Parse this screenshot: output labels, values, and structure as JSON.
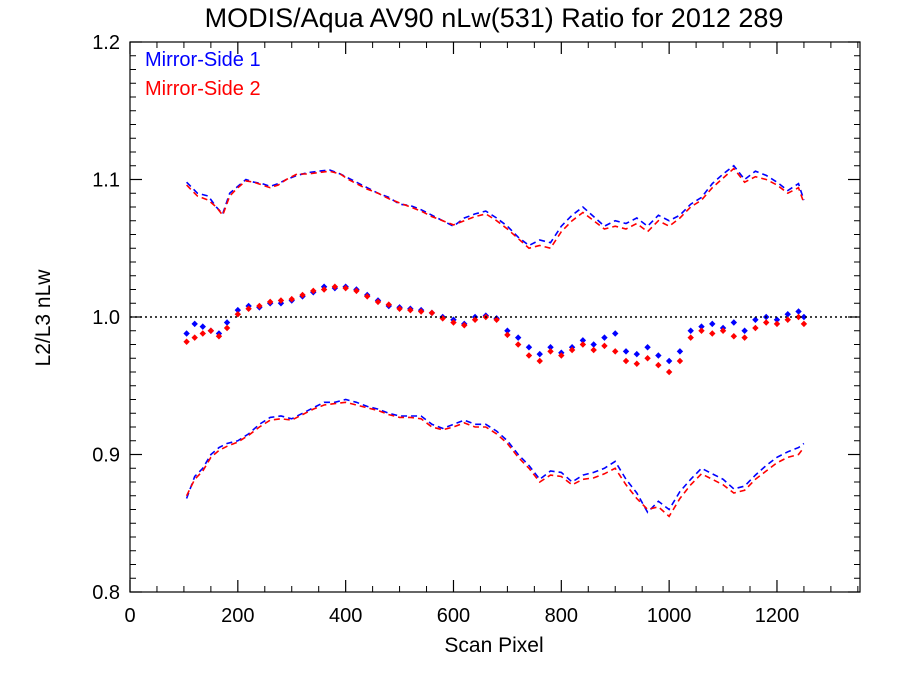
{
  "chart_data": {
    "type": "scatter",
    "title": "MODIS/Aqua AV90 nLw(531) Ratio for 2012 289",
    "xlabel": "Scan Pixel",
    "ylabel": "L2/L3 nLw",
    "xlim": [
      0,
      1354
    ],
    "ylim": [
      0.8,
      1.2
    ],
    "x_ticks": [
      "0",
      "200",
      "400",
      "600",
      "800",
      "1000",
      "1200"
    ],
    "y_ticks": [
      "0.8",
      "0.9",
      "1.0",
      "1.1",
      "1.2"
    ],
    "reference_line": {
      "y": 1.0,
      "style": "dotted",
      "color": "#000000"
    },
    "legend_position": "top-left",
    "series": [
      {
        "name": "Mirror-Side 1",
        "color": "#0000ff",
        "points_x": [
          105,
          120,
          135,
          150,
          165,
          180,
          200,
          220,
          240,
          260,
          280,
          300,
          320,
          340,
          360,
          380,
          400,
          420,
          440,
          460,
          480,
          500,
          520,
          540,
          560,
          580,
          600,
          620,
          640,
          660,
          680,
          700,
          720,
          740,
          760,
          780,
          800,
          820,
          840,
          860,
          880,
          900,
          920,
          940,
          960,
          980,
          1000,
          1020,
          1040,
          1060,
          1080,
          1100,
          1120,
          1140,
          1160,
          1180,
          1200,
          1220,
          1240,
          1250
        ],
        "points_y": [
          0.988,
          0.995,
          0.993,
          0.99,
          0.988,
          0.996,
          1.005,
          1.008,
          1.007,
          1.01,
          1.01,
          1.012,
          1.015,
          1.018,
          1.022,
          1.021,
          1.022,
          1.02,
          1.016,
          1.012,
          1.008,
          1.007,
          1.006,
          1.005,
          1.003,
          1.0,
          0.998,
          0.995,
          1.0,
          1.001,
          0.999,
          0.99,
          0.985,
          0.978,
          0.973,
          0.978,
          0.974,
          0.978,
          0.983,
          0.98,
          0.985,
          0.988,
          0.975,
          0.973,
          0.978,
          0.972,
          0.968,
          0.975,
          0.99,
          0.993,
          0.995,
          0.992,
          0.996,
          0.99,
          0.998,
          1.0,
          0.998,
          1.002,
          1.004,
          1.0
        ],
        "upper_x": [
          105,
          125,
          145,
          160,
          172,
          185,
          200,
          215,
          230,
          245,
          260,
          275,
          290,
          310,
          330,
          350,
          370,
          390,
          405,
          420,
          440,
          460,
          480,
          500,
          520,
          540,
          560,
          580,
          600,
          620,
          640,
          660,
          680,
          700,
          720,
          740,
          760,
          780,
          800,
          820,
          840,
          860,
          880,
          900,
          920,
          940,
          960,
          980,
          1000,
          1020,
          1040,
          1060,
          1080,
          1100,
          1120,
          1140,
          1160,
          1180,
          1200,
          1220,
          1240,
          1250
        ],
        "upper_y": [
          1.098,
          1.09,
          1.088,
          1.08,
          1.075,
          1.09,
          1.095,
          1.1,
          1.098,
          1.097,
          1.095,
          1.097,
          1.1,
          1.103,
          1.105,
          1.106,
          1.107,
          1.104,
          1.101,
          1.098,
          1.094,
          1.09,
          1.087,
          1.082,
          1.081,
          1.078,
          1.074,
          1.07,
          1.066,
          1.072,
          1.075,
          1.077,
          1.072,
          1.066,
          1.058,
          1.052,
          1.056,
          1.054,
          1.066,
          1.074,
          1.08,
          1.073,
          1.066,
          1.07,
          1.068,
          1.072,
          1.066,
          1.074,
          1.07,
          1.074,
          1.082,
          1.087,
          1.097,
          1.104,
          1.11,
          1.1,
          1.106,
          1.103,
          1.098,
          1.092,
          1.097,
          1.085
        ],
        "lower_x": [
          105,
          120,
          135,
          150,
          165,
          180,
          200,
          220,
          240,
          260,
          280,
          300,
          320,
          340,
          360,
          380,
          400,
          420,
          440,
          460,
          480,
          500,
          520,
          540,
          560,
          580,
          600,
          620,
          640,
          660,
          680,
          700,
          720,
          740,
          760,
          780,
          800,
          820,
          840,
          860,
          880,
          900,
          920,
          940,
          960,
          980,
          1000,
          1020,
          1040,
          1060,
          1080,
          1100,
          1120,
          1140,
          1160,
          1180,
          1200,
          1220,
          1240,
          1250
        ],
        "lower_y": [
          0.868,
          0.884,
          0.89,
          0.9,
          0.905,
          0.908,
          0.91,
          0.915,
          0.922,
          0.927,
          0.928,
          0.926,
          0.93,
          0.934,
          0.938,
          0.938,
          0.94,
          0.938,
          0.935,
          0.933,
          0.93,
          0.928,
          0.928,
          0.928,
          0.922,
          0.919,
          0.922,
          0.925,
          0.922,
          0.922,
          0.917,
          0.91,
          0.9,
          0.892,
          0.882,
          0.888,
          0.887,
          0.88,
          0.885,
          0.887,
          0.89,
          0.895,
          0.882,
          0.872,
          0.858,
          0.866,
          0.86,
          0.873,
          0.882,
          0.89,
          0.886,
          0.882,
          0.875,
          0.877,
          0.885,
          0.892,
          0.898,
          0.902,
          0.905,
          0.908
        ]
      },
      {
        "name": "Mirror-Side 2",
        "color": "#ff0000",
        "points_x": [
          105,
          120,
          135,
          150,
          165,
          180,
          200,
          220,
          240,
          260,
          280,
          300,
          320,
          340,
          360,
          380,
          400,
          420,
          440,
          460,
          480,
          500,
          520,
          540,
          560,
          580,
          600,
          620,
          640,
          660,
          680,
          700,
          720,
          740,
          760,
          780,
          800,
          820,
          840,
          860,
          880,
          900,
          920,
          940,
          960,
          980,
          1000,
          1020,
          1040,
          1060,
          1080,
          1100,
          1120,
          1140,
          1160,
          1180,
          1200,
          1220,
          1240,
          1250
        ],
        "points_y": [
          0.982,
          0.985,
          0.988,
          0.99,
          0.986,
          0.992,
          1.002,
          1.006,
          1.008,
          1.011,
          1.012,
          1.013,
          1.016,
          1.019,
          1.02,
          1.022,
          1.021,
          1.019,
          1.015,
          1.011,
          1.009,
          1.006,
          1.005,
          1.004,
          1.003,
          0.999,
          0.996,
          0.994,
          0.998,
          1.0,
          0.998,
          0.987,
          0.98,
          0.972,
          0.968,
          0.975,
          0.972,
          0.976,
          0.98,
          0.976,
          0.979,
          0.975,
          0.968,
          0.966,
          0.97,
          0.965,
          0.96,
          0.968,
          0.985,
          0.99,
          0.988,
          0.99,
          0.986,
          0.985,
          0.992,
          0.996,
          0.995,
          0.998,
          1.0,
          0.995
        ],
        "upper_x": [
          105,
          125,
          145,
          160,
          172,
          185,
          200,
          215,
          230,
          245,
          260,
          275,
          290,
          310,
          330,
          350,
          370,
          390,
          405,
          420,
          440,
          460,
          480,
          500,
          520,
          540,
          560,
          580,
          600,
          620,
          640,
          660,
          680,
          700,
          720,
          740,
          760,
          780,
          800,
          820,
          840,
          860,
          880,
          900,
          920,
          940,
          960,
          980,
          1000,
          1020,
          1040,
          1060,
          1080,
          1100,
          1120,
          1140,
          1160,
          1180,
          1200,
          1220,
          1240,
          1250
        ],
        "upper_y": [
          1.096,
          1.088,
          1.085,
          1.08,
          1.074,
          1.088,
          1.094,
          1.099,
          1.098,
          1.096,
          1.094,
          1.096,
          1.1,
          1.104,
          1.104,
          1.105,
          1.106,
          1.104,
          1.1,
          1.097,
          1.093,
          1.09,
          1.086,
          1.083,
          1.08,
          1.077,
          1.073,
          1.07,
          1.067,
          1.07,
          1.073,
          1.075,
          1.07,
          1.064,
          1.057,
          1.05,
          1.052,
          1.05,
          1.062,
          1.07,
          1.076,
          1.07,
          1.064,
          1.066,
          1.064,
          1.068,
          1.062,
          1.07,
          1.066,
          1.072,
          1.08,
          1.085,
          1.094,
          1.101,
          1.108,
          1.098,
          1.102,
          1.1,
          1.096,
          1.09,
          1.094,
          1.083
        ],
        "lower_x": [
          105,
          120,
          135,
          150,
          165,
          180,
          200,
          220,
          240,
          260,
          280,
          300,
          320,
          340,
          360,
          380,
          400,
          420,
          440,
          460,
          480,
          500,
          520,
          540,
          560,
          580,
          600,
          620,
          640,
          660,
          680,
          700,
          720,
          740,
          760,
          780,
          800,
          820,
          840,
          860,
          880,
          900,
          920,
          940,
          960,
          980,
          1000,
          1020,
          1040,
          1060,
          1080,
          1100,
          1120,
          1140,
          1160,
          1180,
          1200,
          1220,
          1240,
          1250
        ],
        "lower_y": [
          0.87,
          0.882,
          0.888,
          0.898,
          0.903,
          0.906,
          0.909,
          0.914,
          0.92,
          0.925,
          0.926,
          0.925,
          0.929,
          0.933,
          0.936,
          0.937,
          0.938,
          0.936,
          0.934,
          0.932,
          0.929,
          0.927,
          0.927,
          0.926,
          0.92,
          0.918,
          0.92,
          0.923,
          0.92,
          0.92,
          0.915,
          0.908,
          0.898,
          0.89,
          0.88,
          0.885,
          0.884,
          0.878,
          0.882,
          0.883,
          0.886,
          0.89,
          0.878,
          0.868,
          0.86,
          0.862,
          0.855,
          0.868,
          0.878,
          0.886,
          0.882,
          0.878,
          0.872,
          0.874,
          0.882,
          0.888,
          0.894,
          0.898,
          0.9,
          0.905
        ]
      }
    ]
  }
}
